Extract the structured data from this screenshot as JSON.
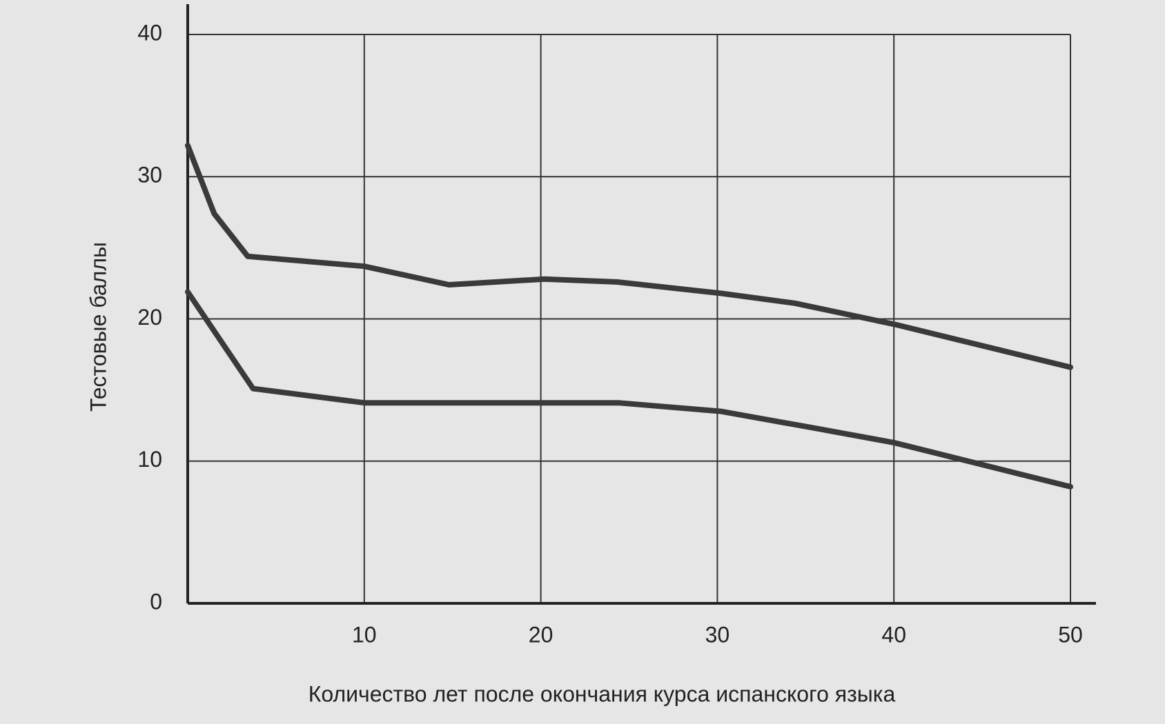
{
  "chart_data": {
    "type": "line",
    "xlabel": "Количество лет после окончания курса испанского языка",
    "ylabel": "Тестовые баллы",
    "xlim": [
      0,
      50
    ],
    "xticks": [
      10,
      20,
      30,
      40,
      50
    ],
    "ylim": [
      0,
      40
    ],
    "yticks": [
      0,
      10,
      20,
      30,
      40
    ],
    "grid": true,
    "series": [
      {
        "color": "#3a3a3a",
        "x": [
          0,
          1.5,
          3.4,
          10,
          14.8,
          20.2,
          24.3,
          30.2,
          34.4,
          40.1,
          50
        ],
        "values": [
          32.2,
          27.4,
          24.4,
          23.7,
          22.4,
          22.8,
          22.6,
          21.8,
          21.1,
          19.6,
          16.6
        ]
      },
      {
        "color": "#3a3a3a",
        "x": [
          0,
          3.7,
          10,
          20,
          24.4,
          30.2,
          35.6,
          40,
          50
        ],
        "values": [
          21.9,
          15.1,
          14.1,
          14.1,
          14.1,
          13.5,
          12.3,
          11.3,
          8.2
        ]
      }
    ]
  }
}
